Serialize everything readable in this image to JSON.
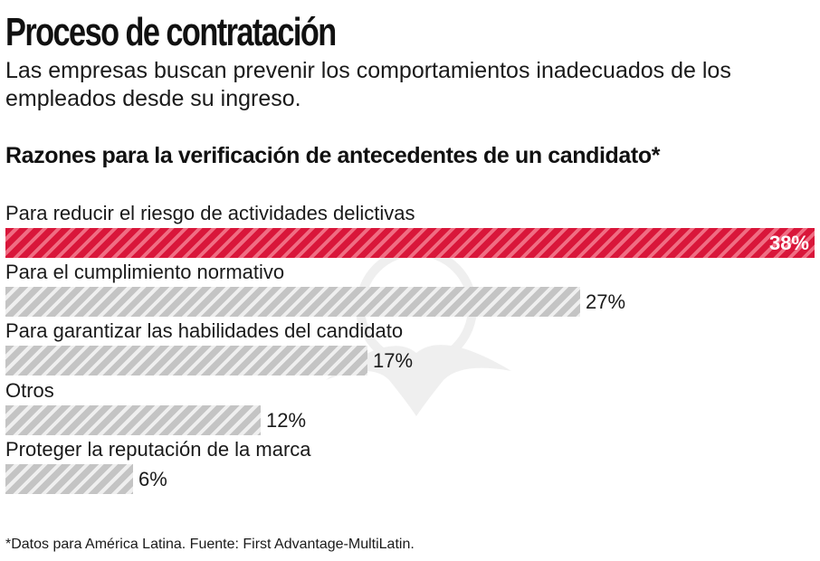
{
  "header": {
    "title": "Proceso de contratación",
    "subtitle": "Las empresas buscan prevenir los comportamientos inadecuados de los empleados desde su ingreso."
  },
  "chart_data": {
    "type": "bar",
    "orientation": "horizontal",
    "title": "Razones para la verificación de antecedentes de un candidato*",
    "categories": [
      "Para reducir el riesgo de actividades delictivas",
      "Para el cumplimiento normativo",
      "Para garantizar las habilidades del candidato",
      "Otros",
      "Proteger la reputación de la marca"
    ],
    "values": [
      38,
      27,
      17,
      12,
      6
    ],
    "value_labels": [
      "38%",
      "27%",
      "17%",
      "12%",
      "6%"
    ],
    "unit": "%",
    "xlim": [
      0,
      38
    ],
    "highlight_index": 0,
    "colors": {
      "highlight": "#d9163a",
      "default": "#c4c4c4"
    },
    "grid": false,
    "legend": "none"
  },
  "footnote": "*Datos para América Latina. Fuente: First Advantage-MultiLatin."
}
